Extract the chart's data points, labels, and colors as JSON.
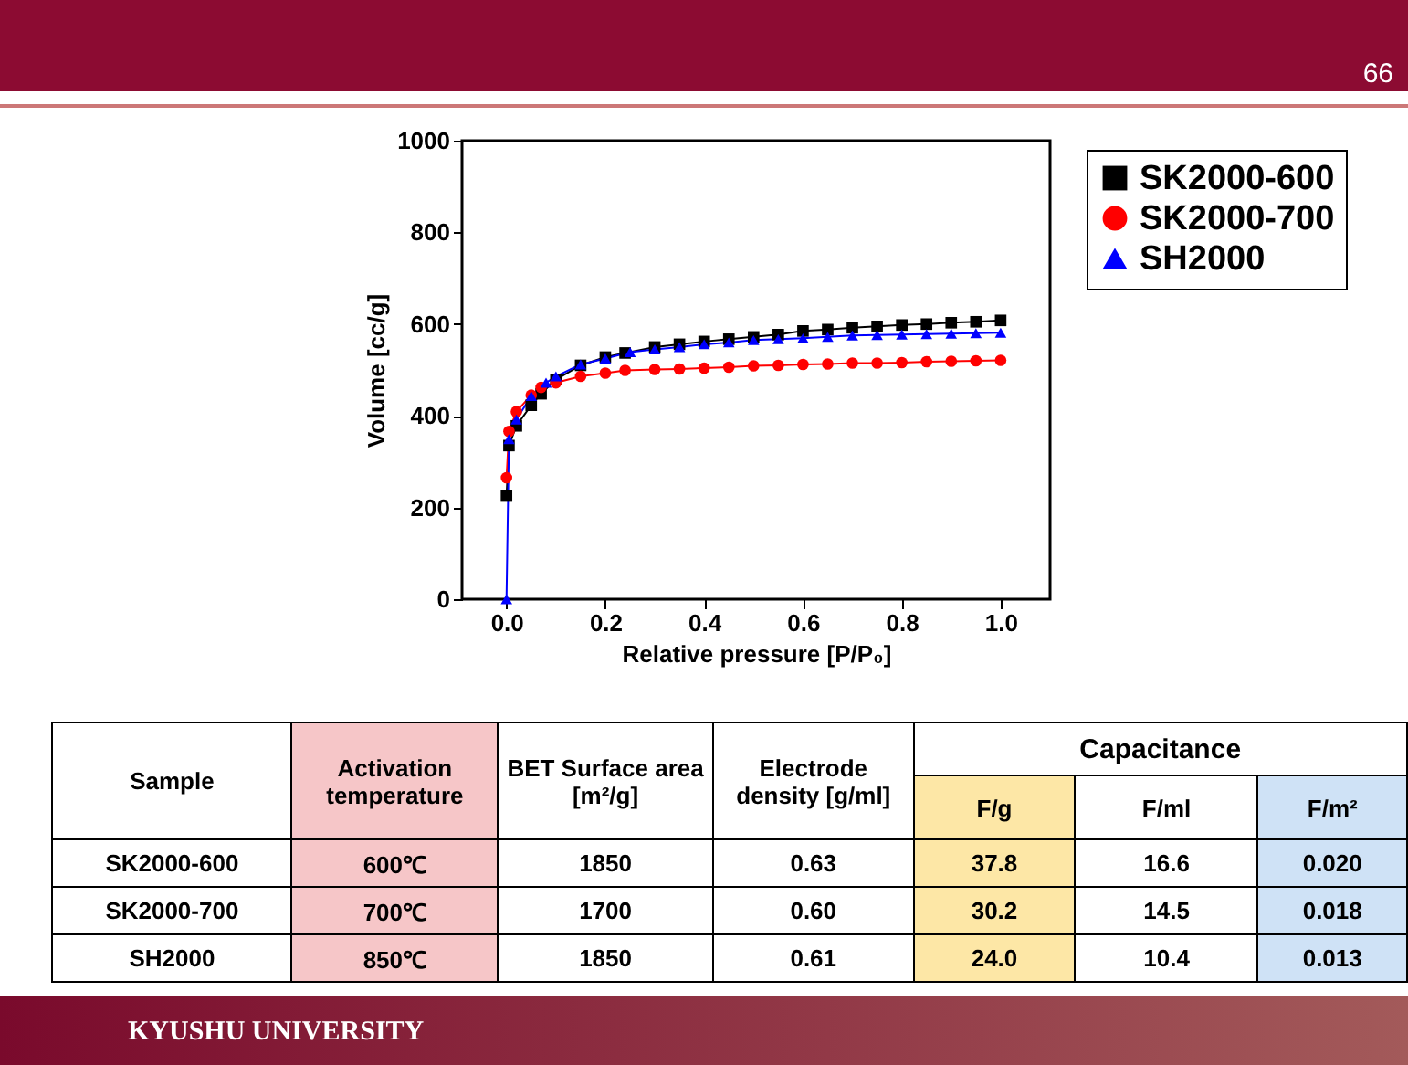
{
  "chart_data": {
    "type": "line",
    "xlabel": "Relative pressure [P/P₀]",
    "ylabel": "Volume [cc/g]",
    "xlim": [
      -0.09,
      1.1
    ],
    "ylim": [
      0,
      1000
    ],
    "xticks": [
      {
        "value": 0,
        "label": "0.0"
      },
      {
        "value": 0.2,
        "label": "0.2"
      },
      {
        "value": 0.4,
        "label": "0.4"
      },
      {
        "value": 0.6,
        "label": "0.6"
      },
      {
        "value": 0.8,
        "label": "0.8"
      },
      {
        "value": 1,
        "label": "1.0"
      }
    ],
    "yticks": [
      0,
      200,
      400,
      600,
      800,
      1000
    ],
    "legend": "top right",
    "series": [
      {
        "name": "SK2000-600",
        "color": "#000000",
        "marker": "square",
        "x": [
          0,
          0.005,
          0.02,
          0.05,
          0.07,
          0.1,
          0.15,
          0.2,
          0.24,
          0.3,
          0.35,
          0.4,
          0.45,
          0.5,
          0.55,
          0.6,
          0.65,
          0.7,
          0.75,
          0.8,
          0.85,
          0.9,
          0.95,
          1.0
        ],
        "values": [
          225,
          335,
          378,
          423,
          448,
          479,
          510,
          528,
          537,
          550,
          556,
          562,
          567,
          572,
          577,
          585,
          588,
          592,
          595,
          598,
          600,
          603,
          605,
          608
        ]
      },
      {
        "name": "SK2000-700",
        "color": "#ff0000",
        "marker": "circle",
        "x": [
          0,
          0.005,
          0.02,
          0.05,
          0.07,
          0.1,
          0.15,
          0.2,
          0.24,
          0.3,
          0.35,
          0.4,
          0.45,
          0.5,
          0.55,
          0.6,
          0.65,
          0.7,
          0.75,
          0.8,
          0.85,
          0.9,
          0.95,
          1.0
        ],
        "values": [
          265,
          366,
          409,
          445,
          462,
          472,
          486,
          493,
          499,
          501,
          502,
          504,
          506,
          509,
          510,
          512,
          513,
          515,
          515,
          516,
          518,
          519,
          520,
          521
        ]
      },
      {
        "name": "SH2000",
        "color": "#0000ff",
        "marker": "triangle",
        "x": [
          0,
          0.005,
          0.02,
          0.05,
          0.08,
          0.1,
          0.15,
          0.2,
          0.25,
          0.3,
          0.35,
          0.4,
          0.45,
          0.5,
          0.55,
          0.6,
          0.65,
          0.7,
          0.75,
          0.8,
          0.85,
          0.9,
          0.95,
          1.0
        ],
        "values": [
          0,
          349,
          392,
          443,
          472,
          486,
          512,
          525,
          539,
          545,
          550,
          556,
          560,
          565,
          567,
          569,
          572,
          575,
          576,
          577,
          578,
          579,
          580,
          581
        ]
      }
    ],
    "annotations": [
      "66",
      "KYUSHU UNIVERSITY",
      "Sample",
      "Activation temperature",
      "BET Surface area [m²/g]",
      "Electrode density [g/ml]",
      "Capacitance",
      "F/g",
      "F/ml",
      "F/m²",
      "SK2000-600",
      "600℃",
      "1850",
      "0.63",
      "37.8",
      "16.6",
      "0.020",
      "SK2000-700",
      "700℃",
      "1700",
      "0.60",
      "30.2",
      "14.5",
      "0.018",
      "SH2000",
      "850℃",
      "1850",
      "0.61",
      "24.0",
      "10.4",
      "0.013"
    ]
  }
}
